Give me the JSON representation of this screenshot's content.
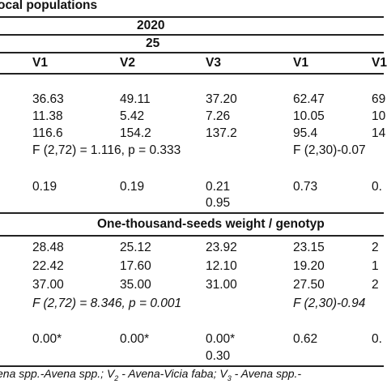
{
  "title": "ocal populations",
  "year": "2020",
  "sub_header": "25",
  "columns": [
    "V1",
    "V2",
    "V3",
    "V1",
    "V1"
  ],
  "section1": {
    "rows": [
      [
        "36.63",
        "49.11",
        "37.20",
        "62.47",
        "69"
      ],
      [
        "11.38",
        "5.42",
        "7.26",
        "10.05",
        "10"
      ],
      [
        "116.6",
        "154.2",
        "137.2",
        "95.4",
        "14"
      ]
    ],
    "f_test_left": "F (2,72) = 1.116, p = 0.333",
    "f_test_right": "F (2,30)-0.07",
    "p_row": [
      "0.19",
      "0.19",
      "0.21",
      "0.73",
      "0."
    ],
    "extra": "0.95"
  },
  "section2": {
    "heading": "One-thousand-seeds weight / genotyp",
    "rows": [
      [
        "28.48",
        "25.12",
        "23.92",
        "23.15",
        "2"
      ],
      [
        "22.42",
        "17.60",
        "12.10",
        "19.20",
        "1"
      ],
      [
        "37.00",
        "35.00",
        "31.00",
        "27.50",
        "2"
      ]
    ],
    "f_test_left": "F (2,72) = 8.346, p = 0.001",
    "f_test_right": "F (2,30)-0.94",
    "p_row": [
      "0.00*",
      "0.00*",
      "0.00*",
      "0.62",
      "0."
    ],
    "extra": "0.30"
  },
  "footnote": {
    "part1": "ena spp.-Avena spp.; V",
    "sub1": "2",
    "part2": " - Avena-Vicia faba; V",
    "sub2": "3",
    "part3": " - Avena spp.-"
  }
}
